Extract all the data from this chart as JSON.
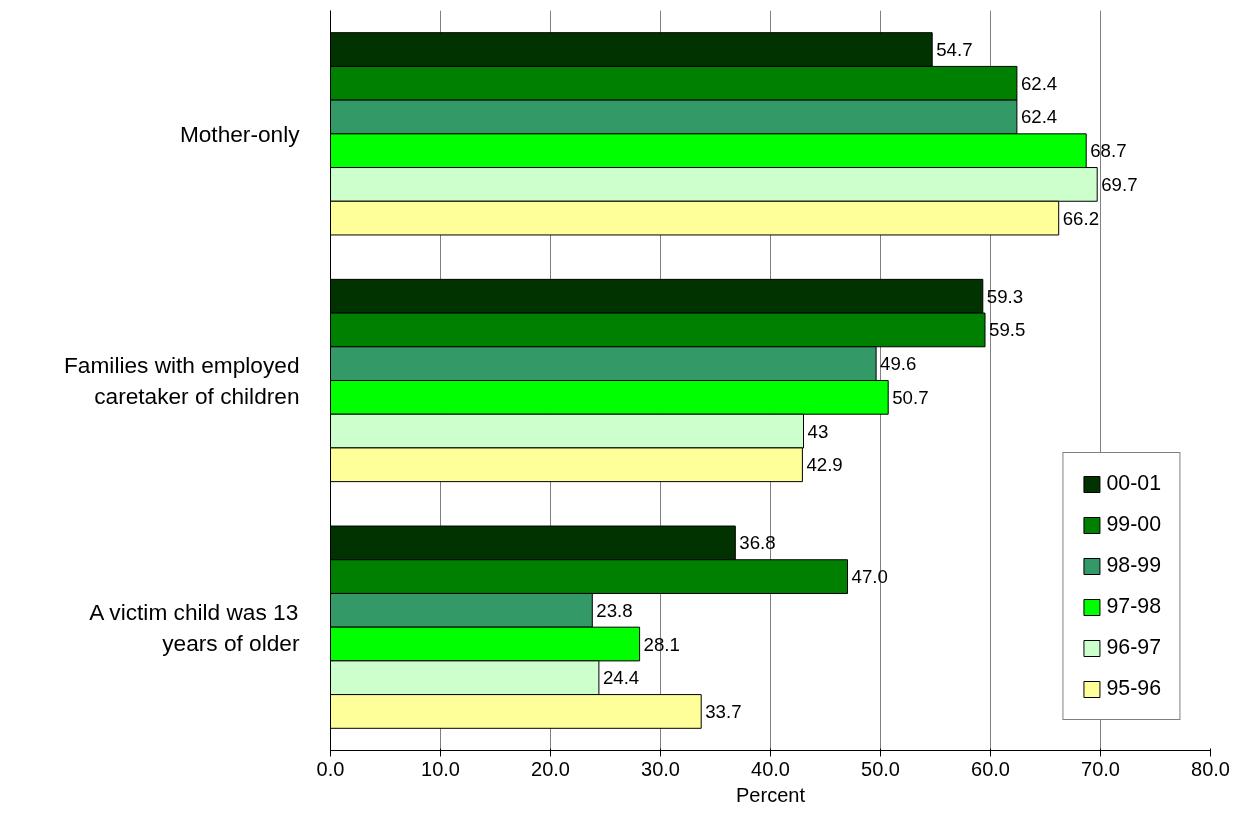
{
  "chart_data": {
    "type": "bar",
    "orientation": "horizontal",
    "xlabel": "Percent",
    "categories": [
      "Mother-only",
      "Families with employed caretaker of children",
      "A victim child was 13 years of older"
    ],
    "series": [
      {
        "name": "00-01",
        "color": "#003300",
        "values": [
          54.7,
          59.3,
          36.8
        ],
        "value_labels": [
          "54.7",
          "59.3",
          "36.8"
        ]
      },
      {
        "name": "99-00",
        "color": "#008000",
        "values": [
          62.4,
          59.5,
          47.0
        ],
        "value_labels": [
          "62.4",
          "59.5",
          "47.0"
        ]
      },
      {
        "name": "98-99",
        "color": "#339966",
        "values": [
          62.4,
          49.6,
          23.8
        ],
        "value_labels": [
          "62.4",
          "49.6",
          "23.8"
        ]
      },
      {
        "name": "97-98",
        "color": "#00ff00",
        "values": [
          68.7,
          50.7,
          28.1
        ],
        "value_labels": [
          "68.7",
          "50.7",
          "28.1"
        ]
      },
      {
        "name": "96-97",
        "color": "#ccffcc",
        "values": [
          69.7,
          43,
          24.4
        ],
        "value_labels": [
          "69.7",
          "43",
          "24.4"
        ]
      },
      {
        "name": "95-96",
        "color": "#ffff99",
        "values": [
          66.2,
          42.9,
          33.7
        ],
        "value_labels": [
          "66.2",
          "42.9",
          "33.7"
        ]
      }
    ],
    "xlim": [
      0,
      80
    ],
    "xticks": [
      {
        "value": 0,
        "label": "0.0"
      },
      {
        "value": 10,
        "label": "10.0"
      },
      {
        "value": 20,
        "label": "20.0"
      },
      {
        "value": 30,
        "label": "30.0"
      },
      {
        "value": 40,
        "label": "40.0"
      },
      {
        "value": 50,
        "label": "50.0"
      },
      {
        "value": 60,
        "label": "60.0"
      },
      {
        "value": 70,
        "label": "70.0"
      },
      {
        "value": 80,
        "label": "80.0"
      }
    ],
    "grid": "x",
    "legend": "bottom right"
  }
}
